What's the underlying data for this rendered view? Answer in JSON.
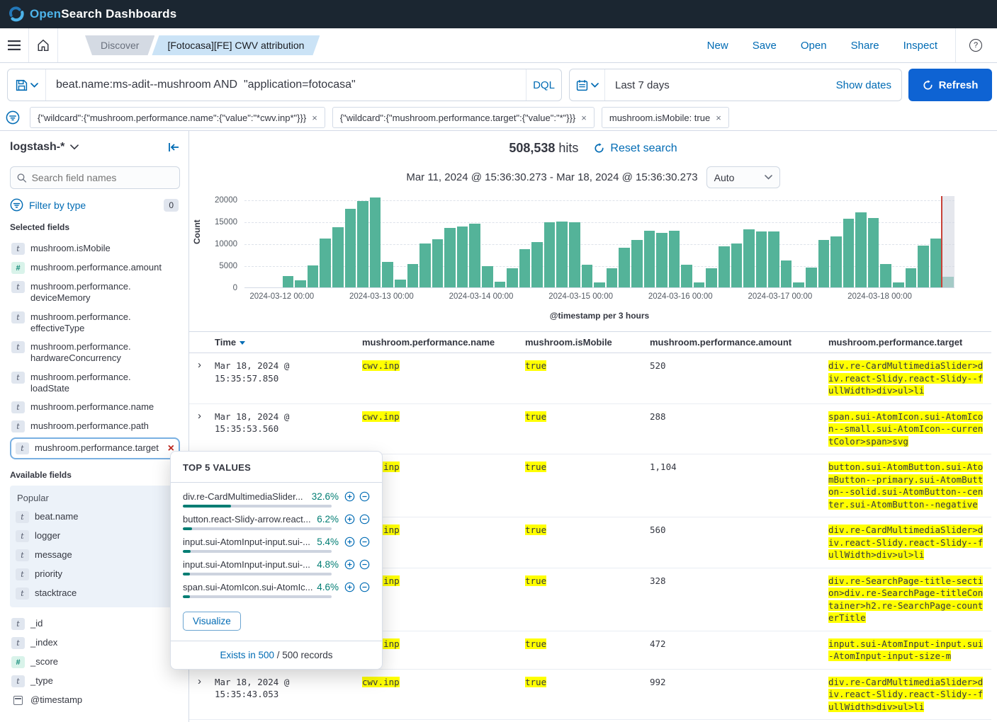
{
  "banner": {
    "brand_open": "Open",
    "brand_search": "Search",
    "brand_suffix": "Dashboards"
  },
  "nav": {
    "breadcrumbs": [
      {
        "label": "Discover",
        "active": false
      },
      {
        "label": "[Fotocasa][FE] CWV attribution",
        "active": true
      }
    ],
    "actions": [
      "New",
      "Save",
      "Open",
      "Share",
      "Inspect"
    ]
  },
  "icons": {
    "logo": "opensearch-swirl",
    "menu": "hamburger-icon",
    "home": "home-icon",
    "help": "question-circle-icon",
    "save": "floppy-icon",
    "calendar": "calendar-icon",
    "filter": "filter-circle-icon",
    "search": "magnifier-icon",
    "refresh": "refresh-icon",
    "collapse": "collapse-left-icon",
    "plus": "plus-circle-icon",
    "minus": "minus-circle-icon"
  },
  "query": {
    "value": "beat.name:ms-adit--mushroom AND  \"application=fotocasa\"",
    "language": "DQL",
    "time_value": "Last 7 days",
    "show_dates": "Show dates",
    "refresh_label": "Refresh"
  },
  "filters": [
    "{\"wildcard\":{\"mushroom.performance.name\":{\"value\":\"*cwv.inp*\"}}}",
    "{\"wildcard\":{\"mushroom.performance.target\":{\"value\":\"*\"}}}",
    "mushroom.isMobile: true"
  ],
  "sidebar": {
    "index_pattern": "logstash-*",
    "search_placeholder": "Search field names",
    "filter_by_type": "Filter by type",
    "filter_count": "0",
    "selected_header": "Selected fields",
    "available_header": "Available fields",
    "popular_label": "Popular",
    "selected_fields": [
      {
        "name": "mushroom.isMobile",
        "type": "t"
      },
      {
        "name": "mushroom.performance.amount",
        "type": "num"
      },
      {
        "name": "mushroom.performance.deviceMemory",
        "type": "t"
      },
      {
        "name": "mushroom.performance.effectiveType",
        "type": "t"
      },
      {
        "name": "mushroom.performance.hardwareConcurrency",
        "type": "t"
      },
      {
        "name": "mushroom.performance.loadState",
        "type": "t"
      },
      {
        "name": "mushroom.performance.name",
        "type": "t"
      },
      {
        "name": "mushroom.performance.path",
        "type": "t"
      },
      {
        "name": "mushroom.performance.target",
        "type": "t",
        "selected": true
      }
    ],
    "popular_fields": [
      {
        "name": "beat.name",
        "type": "t"
      },
      {
        "name": "logger",
        "type": "t"
      },
      {
        "name": "message",
        "type": "t"
      },
      {
        "name": "priority",
        "type": "t"
      },
      {
        "name": "stacktrace",
        "type": "t"
      }
    ],
    "meta_fields": [
      {
        "name": "_id",
        "type": "t"
      },
      {
        "name": "_index",
        "type": "t"
      },
      {
        "name": "_score",
        "type": "num"
      },
      {
        "name": "_type",
        "type": "t"
      },
      {
        "name": "@timestamp",
        "type": "date"
      }
    ]
  },
  "popup": {
    "title": "TOP 5 VALUES",
    "values": [
      {
        "label": "div.re-CardMultimediaSlider...",
        "pct": "32.6%",
        "pct_num": 32.6
      },
      {
        "label": "button.react-Slidy-arrow.react...",
        "pct": "6.2%",
        "pct_num": 6.2
      },
      {
        "label": "input.sui-AtomInput-input.sui-...",
        "pct": "5.4%",
        "pct_num": 5.4
      },
      {
        "label": "input.sui-AtomInput-input.sui-...",
        "pct": "4.8%",
        "pct_num": 4.8
      },
      {
        "label": "span.sui-AtomIcon.sui-AtomIc...",
        "pct": "4.6%",
        "pct_num": 4.6
      }
    ],
    "visualize_label": "Visualize",
    "exists_link": "Exists in 500",
    "records_suffix": " / 500 records"
  },
  "results": {
    "hits_count": "508,538",
    "hits_label": "hits",
    "reset_label": "Reset search",
    "time_range": "Mar 11, 2024 @ 15:36:30.273 - Mar 18, 2024 @ 15:36:30.273",
    "interval": "Auto"
  },
  "chart_data": {
    "type": "bar",
    "ylabel": "Count",
    "xlabel": "@timestamp per 3 hours",
    "ylim": [
      0,
      21000
    ],
    "y_ticks": [
      0,
      5000,
      10000,
      15000,
      20000
    ],
    "bucket_interval": "3h",
    "bucket_start": "2024-03-11 15:00",
    "slots": 57,
    "x_tick_labels": [
      "2024-03-12 00:00",
      "2024-03-13 00:00",
      "2024-03-14 00:00",
      "2024-03-15 00:00",
      "2024-03-16 00:00",
      "2024-03-17 00:00",
      "2024-03-18 00:00"
    ],
    "x_tick_slots": [
      3,
      11,
      19,
      27,
      35,
      43,
      51
    ],
    "values": [
      0,
      0,
      0,
      2600,
      1600,
      5000,
      11100,
      13700,
      17900,
      19700,
      20500,
      5800,
      1800,
      5400,
      10000,
      11000,
      13500,
      13900,
      14600,
      4900,
      1300,
      4400,
      8700,
      10400,
      14800,
      15000,
      14900,
      5200,
      1200,
      4300,
      9100,
      10800,
      12900,
      12500,
      13000,
      5200,
      1100,
      4400,
      9400,
      10000,
      13200,
      12800,
      12800,
      6100,
      1200,
      4500,
      10900,
      11600,
      15600,
      17200,
      15900,
      5300,
      1200,
      4400,
      9500,
      11200,
      2500
    ],
    "bar_color": "#54b399",
    "now_line_slot": 56
  },
  "table": {
    "columns": [
      "Time",
      "mushroom.performance.name",
      "mushroom.isMobile",
      "mushroom.performance.amount",
      "mushroom.performance.target"
    ],
    "rows": [
      {
        "time": "Mar 18, 2024 @ 15:35:57.850",
        "name": "cwv.inp",
        "mobile": "true",
        "amount": "520",
        "target": "div.re-CardMultimediaSlider>div.react-Slidy.react-Slidy--fullWidth>div>ul>li"
      },
      {
        "time": "Mar 18, 2024 @ 15:35:53.560",
        "name": "cwv.inp",
        "mobile": "true",
        "amount": "288",
        "target": "span.sui-AtomIcon.sui-AtomIcon--small.sui-AtomIcon--currentColor>span>svg"
      },
      {
        "time": "",
        "name": "cwv.inp",
        "mobile": "true",
        "amount": "1,104",
        "target": "button.sui-AtomButton.sui-AtomButton--primary.sui-AtomButton--solid.sui-AtomButton--center.sui-AtomButton--negative"
      },
      {
        "time": "",
        "name": "cwv.inp",
        "mobile": "true",
        "amount": "560",
        "target": "div.re-CardMultimediaSlider>div.react-Slidy.react-Slidy--fullWidth>div>ul>li"
      },
      {
        "time": "",
        "name": "cwv.inp",
        "mobile": "true",
        "amount": "328",
        "target": "div.re-SearchPage-title-section>div.re-SearchPage-titleContainer>h2.re-SearchPage-counterTitle"
      },
      {
        "time": "",
        "name": "cwv.inp",
        "mobile": "true",
        "amount": "472",
        "target": "input.sui-AtomInput-input.sui-AtomInput-input-size-m"
      },
      {
        "time": "Mar 18, 2024 @ 15:35:43.053",
        "name": "cwv.inp",
        "mobile": "true",
        "amount": "992",
        "target": "div.re-CardMultimediaSlider>div.react-Slidy.react-Slidy--fullWidth>div>ul>li"
      }
    ]
  }
}
